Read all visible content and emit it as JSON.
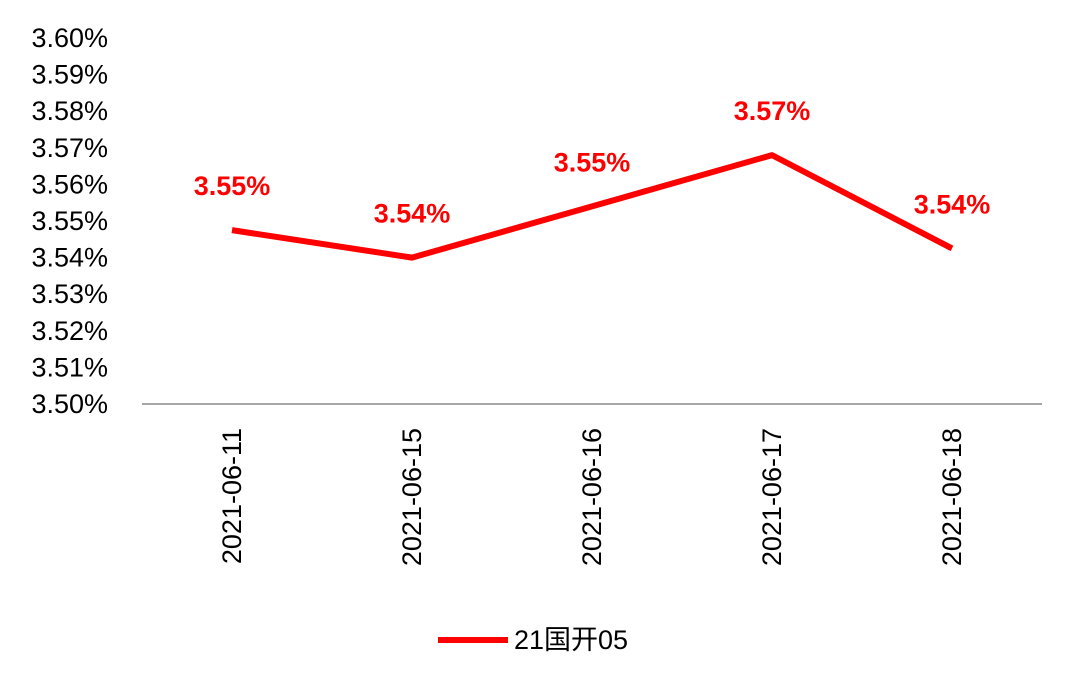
{
  "chart_data": {
    "type": "line",
    "title": "",
    "xlabel": "",
    "ylabel": "",
    "ylim": [
      3.5,
      3.6
    ],
    "yticks": [
      "3.60%",
      "3.59%",
      "3.58%",
      "3.57%",
      "3.56%",
      "3.55%",
      "3.54%",
      "3.53%",
      "3.52%",
      "3.51%",
      "3.50%"
    ],
    "categories": [
      "2021-06-11",
      "2021-06-15",
      "2021-06-16",
      "2021-06-17",
      "2021-06-18"
    ],
    "series": [
      {
        "name": "21国开05",
        "values": [
          3.5475,
          3.54,
          3.554,
          3.568,
          3.5425
        ],
        "labels": [
          "3.55%",
          "3.54%",
          "3.55%",
          "3.57%",
          "3.54%"
        ],
        "color": "#ff0000"
      }
    ],
    "grid": false,
    "legend": "bottom-center"
  }
}
